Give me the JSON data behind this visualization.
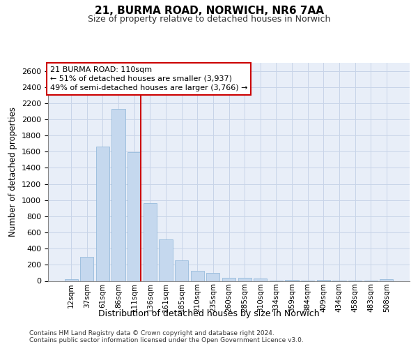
{
  "title1": "21, BURMA ROAD, NORWICH, NR6 7AA",
  "title2": "Size of property relative to detached houses in Norwich",
  "xlabel": "Distribution of detached houses by size in Norwich",
  "ylabel": "Number of detached properties",
  "categories": [
    "12sqm",
    "37sqm",
    "61sqm",
    "86sqm",
    "111sqm",
    "136sqm",
    "161sqm",
    "185sqm",
    "210sqm",
    "235sqm",
    "260sqm",
    "285sqm",
    "310sqm",
    "334sqm",
    "359sqm",
    "384sqm",
    "409sqm",
    "434sqm",
    "458sqm",
    "483sqm",
    "508sqm"
  ],
  "values": [
    20,
    300,
    1660,
    2130,
    1590,
    960,
    510,
    255,
    125,
    100,
    40,
    40,
    30,
    5,
    15,
    5,
    15,
    5,
    5,
    5,
    20
  ],
  "bar_color": "#c5d8ee",
  "bar_edge_color": "#8ab4d8",
  "grid_color": "#c8d4e8",
  "background_color": "#e8eef8",
  "vline_color": "#cc0000",
  "vline_index": 4,
  "annotation_line1": "21 BURMA ROAD: 110sqm",
  "annotation_line2": "← 51% of detached houses are smaller (3,937)",
  "annotation_line3": "49% of semi-detached houses are larger (3,766) →",
  "footer1": "Contains HM Land Registry data © Crown copyright and database right 2024.",
  "footer2": "Contains public sector information licensed under the Open Government Licence v3.0.",
  "ylim_max": 2700,
  "yticks": [
    0,
    200,
    400,
    600,
    800,
    1000,
    1200,
    1400,
    1600,
    1800,
    2000,
    2200,
    2400,
    2600
  ]
}
